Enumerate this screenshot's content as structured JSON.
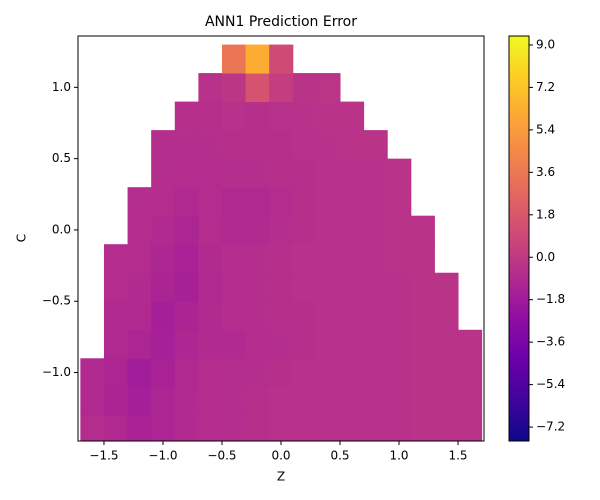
{
  "chart_data": {
    "type": "heatmap",
    "title": "ANN1 Prediction Error",
    "x_label": "Z",
    "y_label": "C",
    "colormap": "plasma",
    "x": [
      -1.6,
      -1.4,
      -1.2,
      -1.0,
      -0.8,
      -0.6,
      -0.4,
      -0.2,
      0.0,
      0.2,
      0.4,
      0.6,
      0.8,
      1.0,
      1.2,
      1.4,
      1.6
    ],
    "y": [
      -1.4,
      -1.2,
      -1.0,
      -0.8,
      -0.6,
      -0.4,
      -0.2,
      0.0,
      0.2,
      0.4,
      0.6,
      0.8,
      1.0,
      1.2
    ],
    "z": [
      [
        -0.8,
        -1.0,
        -1.4,
        -1.2,
        -0.9,
        -0.8,
        -0.7,
        -0.6,
        -0.5,
        -0.5,
        -0.5,
        -0.5,
        -0.5,
        -0.5,
        -0.4,
        -0.4,
        -0.4
      ],
      [
        -1.0,
        -1.3,
        -1.6,
        -1.2,
        -0.9,
        -0.8,
        -0.7,
        -0.6,
        -0.5,
        -0.5,
        -0.5,
        -0.5,
        -0.5,
        -0.5,
        -0.4,
        -0.4,
        -0.4
      ],
      [
        -0.9,
        -1.2,
        -1.7,
        -1.4,
        -1.0,
        -0.8,
        -0.7,
        -0.7,
        -0.6,
        -0.5,
        -0.5,
        -0.5,
        -0.5,
        -0.5,
        -0.4,
        -0.4,
        -0.4
      ],
      [
        null,
        -1.0,
        -1.2,
        -1.5,
        -1.1,
        -0.9,
        -0.9,
        -0.8,
        -0.7,
        -0.6,
        -0.5,
        -0.5,
        -0.5,
        -0.5,
        -0.4,
        -0.4,
        -0.4
      ],
      [
        null,
        -0.9,
        -1.0,
        -1.6,
        -1.3,
        -0.9,
        -0.8,
        -0.7,
        -0.6,
        -0.6,
        -0.5,
        -0.5,
        -0.5,
        -0.5,
        -0.4,
        -0.4,
        null
      ],
      [
        null,
        -0.8,
        -0.9,
        -1.3,
        -1.5,
        -1.0,
        -0.8,
        -0.7,
        -0.6,
        -0.5,
        -0.5,
        -0.5,
        -0.5,
        -0.5,
        -0.4,
        -0.4,
        null
      ],
      [
        null,
        -0.8,
        -0.8,
        -1.1,
        -1.4,
        -0.9,
        -0.8,
        -0.7,
        -0.6,
        -0.5,
        -0.5,
        -0.5,
        -0.5,
        -0.4,
        -0.4,
        null,
        null
      ],
      [
        null,
        null,
        -0.8,
        -0.9,
        -1.2,
        -0.8,
        -0.9,
        -0.9,
        -0.7,
        -0.6,
        -0.5,
        -0.5,
        -0.5,
        -0.4,
        -0.4,
        null,
        null
      ],
      [
        null,
        null,
        -0.7,
        -0.8,
        -1.0,
        -0.8,
        -1.0,
        -1.0,
        -0.8,
        -0.6,
        -0.5,
        -0.5,
        -0.5,
        -0.4,
        null,
        null,
        null
      ],
      [
        null,
        null,
        null,
        -0.7,
        -0.8,
        -0.8,
        -0.7,
        -0.7,
        -0.6,
        -0.6,
        -0.5,
        -0.5,
        -0.5,
        -0.4,
        null,
        null,
        null
      ],
      [
        null,
        null,
        null,
        -0.7,
        -0.7,
        -0.7,
        -0.6,
        -0.6,
        -0.6,
        -0.5,
        -0.5,
        -0.4,
        -0.4,
        null,
        null,
        null,
        null
      ],
      [
        null,
        null,
        null,
        null,
        -0.6,
        -0.6,
        -0.5,
        -0.6,
        -0.5,
        -0.5,
        -0.4,
        -0.4,
        null,
        null,
        null,
        null,
        null
      ],
      [
        null,
        null,
        null,
        null,
        null,
        -0.5,
        -0.2,
        1.5,
        0.2,
        -0.4,
        -0.3,
        null,
        null,
        null,
        null,
        null,
        null
      ],
      [
        null,
        null,
        null,
        null,
        null,
        null,
        3.5,
        6.2,
        1.0,
        null,
        null,
        null,
        null,
        null,
        null,
        null,
        null
      ]
    ],
    "xlim": [
      -1.72,
      1.72
    ],
    "ylim": [
      -1.48,
      1.36
    ],
    "xticks": [
      {
        "value": -1.5,
        "label": "−1.5"
      },
      {
        "value": -1.0,
        "label": "−1.0"
      },
      {
        "value": -0.5,
        "label": "−0.5"
      },
      {
        "value": 0,
        "label": "0.0"
      },
      {
        "value": 0.5,
        "label": "0.5"
      },
      {
        "value": 1,
        "label": "1.0"
      },
      {
        "value": 1.5,
        "label": "1.5"
      }
    ],
    "yticks": [
      {
        "value": -1.0,
        "label": "−1.0"
      },
      {
        "value": -0.5,
        "label": "−0.5"
      },
      {
        "value": 0,
        "label": "0.0"
      },
      {
        "value": 0.5,
        "label": "0.5"
      },
      {
        "value": 1,
        "label": "1.0"
      }
    ],
    "colorbar_lim": [
      -7.79,
      9.38
    ],
    "colorbar_ticks": [
      {
        "value": -7.2,
        "label": "−7.2"
      },
      {
        "value": -5.4,
        "label": "−5.4"
      },
      {
        "value": -3.6,
        "label": "−3.6"
      },
      {
        "value": -1.8,
        "label": "−1.8"
      },
      {
        "value": 0,
        "label": "0.0"
      },
      {
        "value": 1.8,
        "label": "1.8"
      },
      {
        "value": 3.6,
        "label": "3.6"
      },
      {
        "value": 5.4,
        "label": "5.4"
      },
      {
        "value": 7.2,
        "label": "7.2"
      },
      {
        "value": 9,
        "label": "9.0"
      }
    ]
  }
}
